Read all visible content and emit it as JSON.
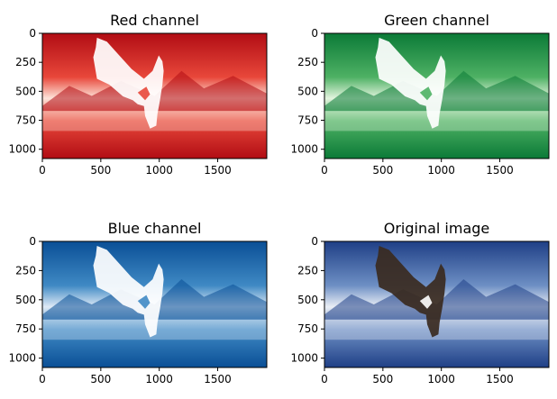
{
  "chart_data": [
    {
      "type": "image",
      "title": "Red channel",
      "colormap": "Reds",
      "xlim": [
        0,
        1920
      ],
      "ylim": [
        1080,
        0
      ],
      "xticks": [
        0,
        500,
        1000,
        1500
      ],
      "yticks": [
        0,
        250,
        500,
        750,
        1000
      ],
      "colors": {
        "dark": "#b10d14",
        "mid": "#e8473a",
        "light": "#fde4da"
      }
    },
    {
      "type": "image",
      "title": "Green channel",
      "colormap": "Greens",
      "xlim": [
        0,
        1920
      ],
      "ylim": [
        1080,
        0
      ],
      "xticks": [
        0,
        500,
        1000,
        1500
      ],
      "yticks": [
        0,
        250,
        500,
        750,
        1000
      ],
      "colors": {
        "dark": "#0b7a37",
        "mid": "#4eb164",
        "light": "#e3f4de"
      }
    },
    {
      "type": "image",
      "title": "Blue channel",
      "colormap": "Blues",
      "xlim": [
        0,
        1920
      ],
      "ylim": [
        1080,
        0
      ],
      "xticks": [
        0,
        500,
        1000,
        1500
      ],
      "yticks": [
        0,
        250,
        500,
        750,
        1000
      ],
      "colors": {
        "dark": "#0a4f96",
        "mid": "#3f89c4",
        "light": "#dfeaf6"
      }
    },
    {
      "type": "image",
      "title": "Original image",
      "colormap": "rgb",
      "xlim": [
        0,
        1920
      ],
      "ylim": [
        1080,
        0
      ],
      "xticks": [
        0,
        500,
        1000,
        1500
      ],
      "yticks": [
        0,
        250,
        500,
        750,
        1000
      ],
      "colors": {
        "dark": "#1f3f86",
        "mid": "#6d8fc4",
        "light": "#eaeef5"
      }
    }
  ]
}
